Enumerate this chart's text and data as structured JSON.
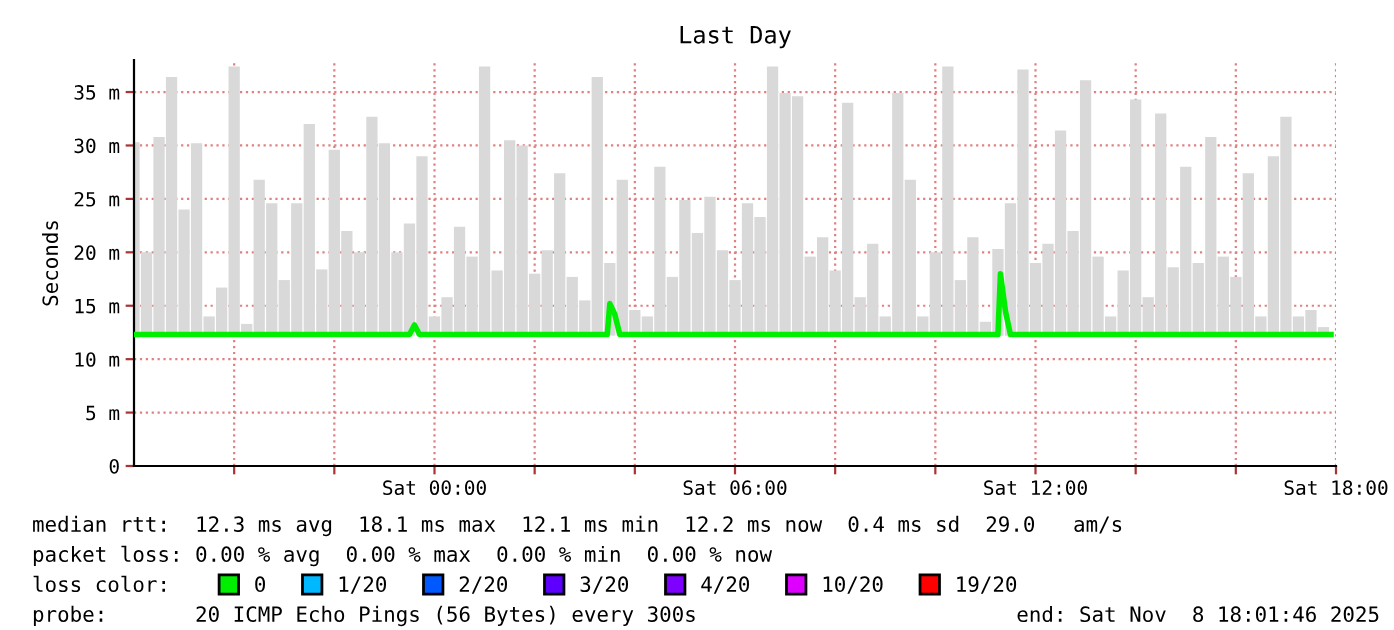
{
  "chart_data": {
    "type": "line",
    "title": "Last Day",
    "ylabel": "Seconds",
    "xlim": [
      "2025-11-07T18:00",
      "2025-11-08T18:00"
    ],
    "xticks": [
      {
        "value": "2025-11-07T20:00",
        "label": null
      },
      {
        "value": "2025-11-07T22:00",
        "label": null
      },
      {
        "value": "2025-11-08T00:00",
        "label": "Sat 00:00"
      },
      {
        "value": "2025-11-08T02:00",
        "label": null
      },
      {
        "value": "2025-11-08T04:00",
        "label": null
      },
      {
        "value": "2025-11-08T06:00",
        "label": "Sat 06:00"
      },
      {
        "value": "2025-11-08T08:00",
        "label": null
      },
      {
        "value": "2025-11-08T10:00",
        "label": null
      },
      {
        "value": "2025-11-08T12:00",
        "label": "Sat 12:00"
      },
      {
        "value": "2025-11-08T14:00",
        "label": null
      },
      {
        "value": "2025-11-08T16:00",
        "label": null
      },
      {
        "value": "2025-11-08T18:00",
        "label": "Sat 18:00"
      }
    ],
    "ylim": [
      0,
      38
    ],
    "yticks": [
      {
        "value": 0,
        "label": "0"
      },
      {
        "value": 5,
        "label": "5 m"
      },
      {
        "value": 10,
        "label": "10 m"
      },
      {
        "value": 15,
        "label": "15 m"
      },
      {
        "value": 20,
        "label": "20 m"
      },
      {
        "value": 25,
        "label": "25 m"
      },
      {
        "value": 30,
        "label": "30 m"
      },
      {
        "value": 35,
        "label": "35 m"
      }
    ],
    "grid": true,
    "legend": "bottom",
    "legend_title": "loss color:",
    "series": [
      {
        "type": "bar",
        "color": "#d9d9d9",
        "x": [
          "2025-11-07T18:00",
          "2025-11-07T18:15",
          "2025-11-07T18:30",
          "2025-11-07T18:45",
          "2025-11-07T19:00",
          "2025-11-07T19:15",
          "2025-11-07T19:30",
          "2025-11-07T19:45",
          "2025-11-07T20:00",
          "2025-11-07T20:15",
          "2025-11-07T20:30",
          "2025-11-07T20:45",
          "2025-11-07T21:00",
          "2025-11-07T21:15",
          "2025-11-07T21:30",
          "2025-11-07T21:45",
          "2025-11-07T22:00",
          "2025-11-07T22:15",
          "2025-11-07T22:30",
          "2025-11-07T22:45",
          "2025-11-07T23:00",
          "2025-11-07T23:15",
          "2025-11-07T23:30",
          "2025-11-07T23:45",
          "2025-11-08T00:00",
          "2025-11-08T00:15",
          "2025-11-08T00:30",
          "2025-11-08T00:45",
          "2025-11-08T01:00",
          "2025-11-08T01:15",
          "2025-11-08T01:30",
          "2025-11-08T01:45",
          "2025-11-08T02:00",
          "2025-11-08T02:15",
          "2025-11-08T02:30",
          "2025-11-08T02:45",
          "2025-11-08T03:00",
          "2025-11-08T03:15",
          "2025-11-08T03:30",
          "2025-11-08T03:45",
          "2025-11-08T04:00",
          "2025-11-08T04:15",
          "2025-11-08T04:30",
          "2025-11-08T04:45",
          "2025-11-08T05:00",
          "2025-11-08T05:15",
          "2025-11-08T05:30",
          "2025-11-08T05:45",
          "2025-11-08T06:00",
          "2025-11-08T06:15",
          "2025-11-08T06:30",
          "2025-11-08T06:45",
          "2025-11-08T07:00",
          "2025-11-08T07:15",
          "2025-11-08T07:30",
          "2025-11-08T07:45",
          "2025-11-08T08:00",
          "2025-11-08T08:15",
          "2025-11-08T08:30",
          "2025-11-08T08:45",
          "2025-11-08T09:00",
          "2025-11-08T09:15",
          "2025-11-08T09:30",
          "2025-11-08T09:45",
          "2025-11-08T10:00",
          "2025-11-08T10:15",
          "2025-11-08T10:30",
          "2025-11-08T10:45",
          "2025-11-08T11:00",
          "2025-11-08T11:15",
          "2025-11-08T11:30",
          "2025-11-08T11:45",
          "2025-11-08T12:00",
          "2025-11-08T12:15",
          "2025-11-08T12:30",
          "2025-11-08T12:45",
          "2025-11-08T13:00",
          "2025-11-08T13:15",
          "2025-11-08T13:30",
          "2025-11-08T13:45",
          "2025-11-08T14:00",
          "2025-11-08T14:15",
          "2025-11-08T14:30",
          "2025-11-08T14:45",
          "2025-11-08T15:00",
          "2025-11-08T15:15",
          "2025-11-08T15:30",
          "2025-11-08T15:45",
          "2025-11-08T16:00",
          "2025-11-08T16:15",
          "2025-11-08T16:30",
          "2025-11-08T16:45",
          "2025-11-08T17:00",
          "2025-11-08T17:15",
          "2025-11-08T17:30",
          "2025-11-08T17:45"
        ],
        "base": [
          12.2,
          12.2,
          12.2,
          12.2,
          12.2,
          12.2,
          12.2,
          12.2,
          12.2,
          12.2,
          12.2,
          12.2,
          12.2,
          12.2,
          12.2,
          12.2,
          12.2,
          12.2,
          12.2,
          12.2,
          12.2,
          12.2,
          12.2,
          12.2,
          12.2,
          12.2,
          12.2,
          12.2,
          12.2,
          12.2,
          12.2,
          12.2,
          12.2,
          12.2,
          12.2,
          12.2,
          12.2,
          12.2,
          12.2,
          12.2,
          12.2,
          12.2,
          12.2,
          12.2,
          12.2,
          12.2,
          12.2,
          12.2,
          12.2,
          12.2,
          12.2,
          12.2,
          12.2,
          12.2,
          12.2,
          12.2,
          12.2,
          12.2,
          12.2,
          12.2,
          12.2,
          12.2,
          12.2,
          12.2,
          12.2,
          12.2,
          12.2,
          12.2,
          12.2,
          12.2,
          12.2,
          12.2,
          12.2,
          12.2,
          12.2,
          12.2,
          12.2,
          12.2,
          12.2,
          12.2,
          12.2,
          12.2,
          12.2,
          12.2,
          12.2,
          12.2,
          12.2,
          12.2,
          12.2,
          12.2,
          12.2,
          12.2,
          12.2,
          12.2,
          12.2,
          12.2
        ],
        "values": [
          18.1,
          7.8,
          18.6,
          24.2,
          11.8,
          18.0,
          1.8,
          4.5,
          25.2,
          1.1,
          14.6,
          12.4,
          5.2,
          12.4,
          19.8,
          6.2,
          17.4,
          9.8,
          7.8,
          20.5,
          18.0,
          7.8,
          10.5,
          16.8,
          1.8,
          3.6,
          10.2,
          7.4,
          25.2,
          6.1,
          18.3,
          17.8,
          5.8,
          8.0,
          15.2,
          5.5,
          3.3,
          24.2,
          6.8,
          14.6,
          2.4,
          1.8,
          15.8,
          5.5,
          12.7,
          9.6,
          13.0,
          8.0,
          5.2,
          12.4,
          11.1,
          25.2,
          22.7,
          22.4,
          7.4,
          9.2,
          6.1,
          21.8,
          3.6,
          8.6,
          1.8,
          22.7,
          14.6,
          1.8,
          7.8,
          25.2,
          5.2,
          9.2,
          1.3,
          8.1,
          12.4,
          24.9,
          6.8,
          8.6,
          19.2,
          9.8,
          23.9,
          7.4,
          1.8,
          6.1,
          22.1,
          3.6,
          20.8,
          6.4,
          15.8,
          6.8,
          18.6,
          7.4,
          5.5,
          15.2,
          1.8,
          16.8,
          20.5,
          1.8,
          2.4,
          0.8
        ]
      },
      {
        "name": "0",
        "color": "#00ee00",
        "x": [
          "2025-11-07T18:00",
          "2025-11-07T22:00",
          "2025-11-07T23:30",
          "2025-11-07T23:36",
          "2025-11-07T23:42",
          "2025-11-08T02:00",
          "2025-11-08T03:27",
          "2025-11-08T03:30",
          "2025-11-08T03:36",
          "2025-11-08T03:42",
          "2025-11-08T06:00",
          "2025-11-08T11:15",
          "2025-11-08T11:18",
          "2025-11-08T11:24",
          "2025-11-08T11:30",
          "2025-11-08T17:54"
        ],
        "values": [
          12.3,
          12.3,
          12.3,
          13.2,
          12.3,
          12.3,
          12.3,
          15.2,
          14.2,
          12.3,
          12.3,
          12.3,
          18.0,
          14.5,
          12.3,
          12.3
        ]
      },
      {
        "name": "1/20",
        "color": "#00b8ff"
      },
      {
        "name": "2/20",
        "color": "#0059ff"
      },
      {
        "name": "3/20",
        "color": "#5e00ff"
      },
      {
        "name": "4/20",
        "color": "#7e00ff"
      },
      {
        "name": "10/20",
        "color": "#dd00ff"
      },
      {
        "name": "19/20",
        "color": "#ff0000"
      }
    ],
    "annotations": [
      "median rtt:  12.3 ms avg  18.1 ms max  12.1 ms min  12.2 ms now  0.4 ms sd  29.0   am/s",
      "packet loss: 0.00 % avg  0.00 % max  0.00 % min  0.00 % now",
      "probe:       20 ICMP Echo Pings (56 Bytes) every 300s",
      "end: Sat Nov  8 18:01:46 2025"
    ]
  }
}
